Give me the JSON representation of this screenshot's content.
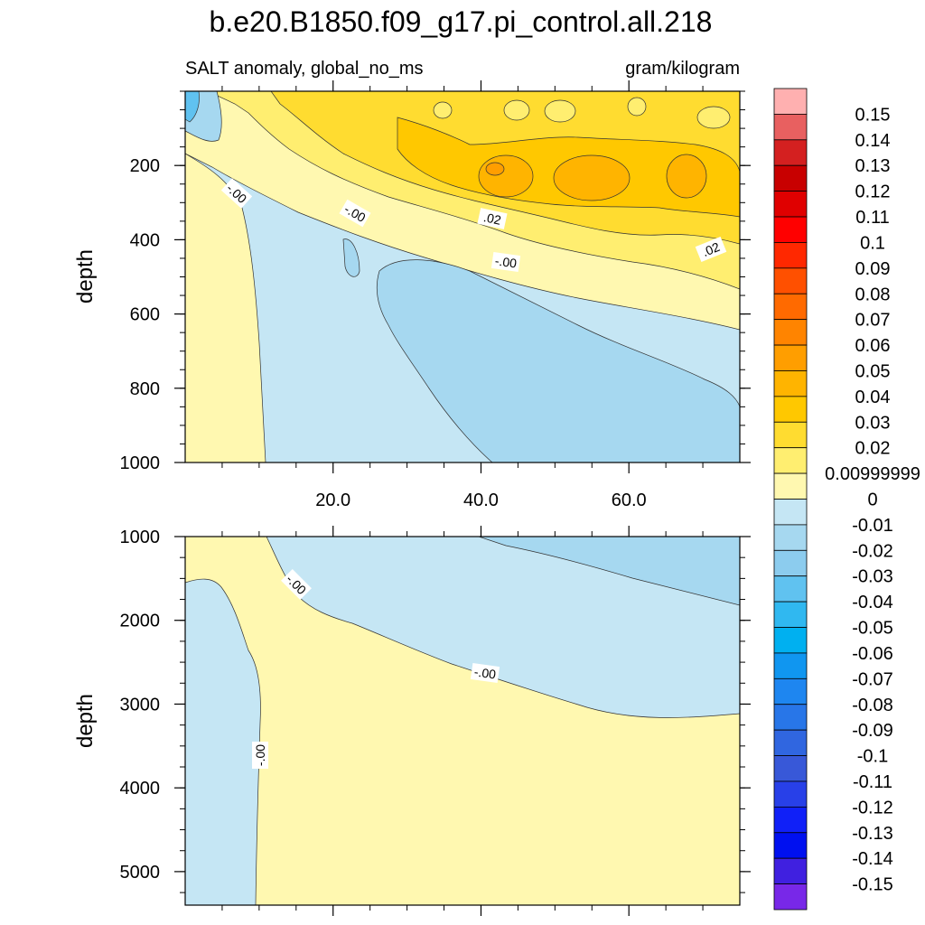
{
  "chart_data": {
    "type": "contour",
    "title": "b.e20.B1850.f09_g17.pi_control.all.218",
    "subtitle_left": "SALT anomaly, global_no_ms",
    "subtitle_right": "gram/kilogram",
    "xlabel": "",
    "ylabel": "depth",
    "xlim": [
      0,
      75
    ],
    "x_ticks": [
      "20.0",
      "40.0",
      "60.0"
    ],
    "x_tick_values": [
      20,
      40,
      60
    ],
    "panels": [
      {
        "name": "upper",
        "ylim": [
          0,
          1000
        ],
        "y_ticks": [
          "200",
          "400",
          "600",
          "800",
          "1000"
        ],
        "y_tick_values": [
          200,
          400,
          600,
          800,
          1000
        ],
        "contour_labels": [
          "-.00",
          "-.00",
          ".02",
          "-.00",
          ".02"
        ]
      },
      {
        "name": "lower",
        "ylim": [
          1000,
          5400
        ],
        "y_ticks": [
          "1000",
          "2000",
          "3000",
          "4000",
          "5000"
        ],
        "y_tick_values": [
          1000,
          2000,
          3000,
          4000,
          5000
        ],
        "contour_labels": [
          "-.00",
          "-.00",
          "-.00"
        ]
      }
    ],
    "colorbar": {
      "labels": [
        "0.15",
        "0.14",
        "0.13",
        "0.12",
        "0.11",
        "0.1",
        "0.09",
        "0.08",
        "0.07",
        "0.06",
        "0.05",
        "0.04",
        "0.03",
        "0.02",
        "0.00999999",
        "0",
        "-0.01",
        "-0.02",
        "-0.03",
        "-0.04",
        "-0.05",
        "-0.06",
        "-0.07",
        "-0.08",
        "-0.09",
        "-0.1",
        "-0.11",
        "-0.12",
        "-0.13",
        "-0.14",
        "-0.15"
      ],
      "colors": [
        "#FFB0B0",
        "#E86060",
        "#D42020",
        "#C80000",
        "#E00000",
        "#FF0000",
        "#FF2800",
        "#FF5000",
        "#FF6A00",
        "#FF8400",
        "#FF9E00",
        "#FFB400",
        "#FFC800",
        "#FFDC30",
        "#FFEE70",
        "#FFF8B0",
        "#C5E6F4",
        "#A6D8F0",
        "#8CCCEE",
        "#60C2F0",
        "#30B8F0",
        "#00B0F0",
        "#1096F0",
        "#1E86F0",
        "#2876E8",
        "#3066E0",
        "#3858D8",
        "#2840E8",
        "#1020F8",
        "#0010F0",
        "#4020E0",
        "#7828E8"
      ]
    }
  }
}
